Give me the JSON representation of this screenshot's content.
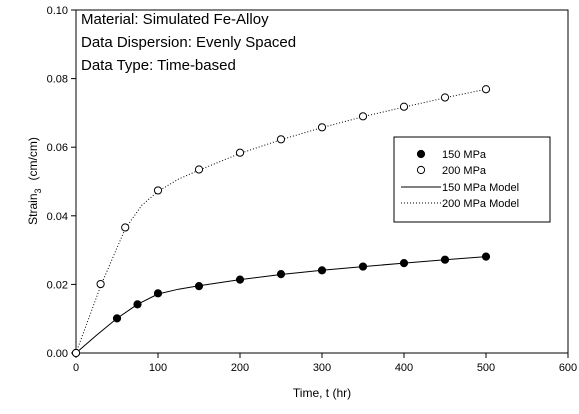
{
  "chart_data": {
    "type": "scatter",
    "xlabel": "Time, t (hr)",
    "ylabel": {
      "main": "Strain",
      "sub": "3",
      "unit": "(cm/cm)"
    },
    "xlim": [
      0,
      600
    ],
    "ylim": [
      0,
      0.1
    ],
    "x_ticks": [
      "0",
      "100",
      "200",
      "300",
      "400",
      "500",
      "600"
    ],
    "y_ticks": [
      "0.00",
      "0.02",
      "0.04",
      "0.06",
      "0.08",
      "0.10"
    ],
    "grid": false,
    "legend_position": "right",
    "annotations": [
      "Material: Simulated Fe-Alloy",
      "Data Dispersion: Evenly Spaced",
      "Data Type: Time-based"
    ],
    "series": [
      {
        "name": "150 MPa",
        "marker": "filled-circle",
        "x": [
          0,
          50,
          75,
          100,
          150,
          200,
          250,
          300,
          350,
          400,
          450,
          500
        ],
        "y": [
          0.0,
          0.0101,
          0.0142,
          0.0174,
          0.0195,
          0.0214,
          0.023,
          0.0241,
          0.0252,
          0.0262,
          0.0272,
          0.0281
        ]
      },
      {
        "name": "200 MPa",
        "marker": "open-circle",
        "x": [
          0,
          30,
          60,
          100,
          150,
          200,
          250,
          300,
          350,
          400,
          450,
          500
        ],
        "y": [
          0.0,
          0.0201,
          0.0366,
          0.0474,
          0.0535,
          0.0584,
          0.0623,
          0.0658,
          0.069,
          0.0718,
          0.0745,
          0.0769
        ]
      },
      {
        "name": "150 MPa Model",
        "line": "solid",
        "x": [
          0,
          25,
          50,
          75,
          100,
          125,
          150,
          200,
          250,
          300,
          350,
          400,
          450,
          500
        ],
        "y": [
          0.0,
          0.0052,
          0.0101,
          0.0142,
          0.0172,
          0.0186,
          0.0196,
          0.0214,
          0.0229,
          0.0241,
          0.0252,
          0.0262,
          0.0272,
          0.0281
        ]
      },
      {
        "name": "200 MPa Model",
        "line": "dotted",
        "x": [
          0,
          30,
          60,
          80,
          100,
          125,
          150,
          200,
          250,
          300,
          350,
          400,
          450,
          500
        ],
        "y": [
          0.0,
          0.0195,
          0.0362,
          0.043,
          0.0471,
          0.0507,
          0.0533,
          0.0582,
          0.0622,
          0.0657,
          0.0689,
          0.0717,
          0.0744,
          0.0769
        ]
      }
    ]
  }
}
